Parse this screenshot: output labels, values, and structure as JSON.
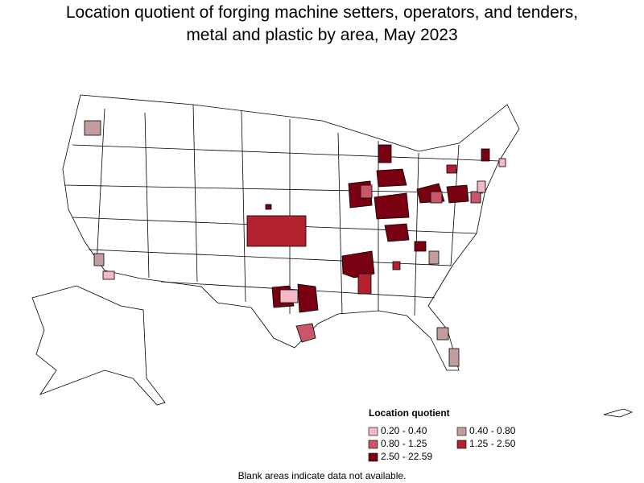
{
  "title": [
    "Location quotient of forging machine setters, operators, and tenders,",
    "metal and plastic by area, May 2023"
  ],
  "legend": {
    "title": "Location quotient",
    "items": [
      {
        "label": "0.20 - 0.40",
        "color": "#f4b8c4"
      },
      {
        "label": "0.40 - 0.80",
        "color": "#c39c9f"
      },
      {
        "label": "0.80 - 1.25",
        "color": "#c9566b"
      },
      {
        "label": "1.25 - 2.50",
        "color": "#b3222e"
      },
      {
        "label": "2.50 - 22.59",
        "color": "#780010"
      }
    ]
  },
  "note": "Blank areas indicate data not available."
}
